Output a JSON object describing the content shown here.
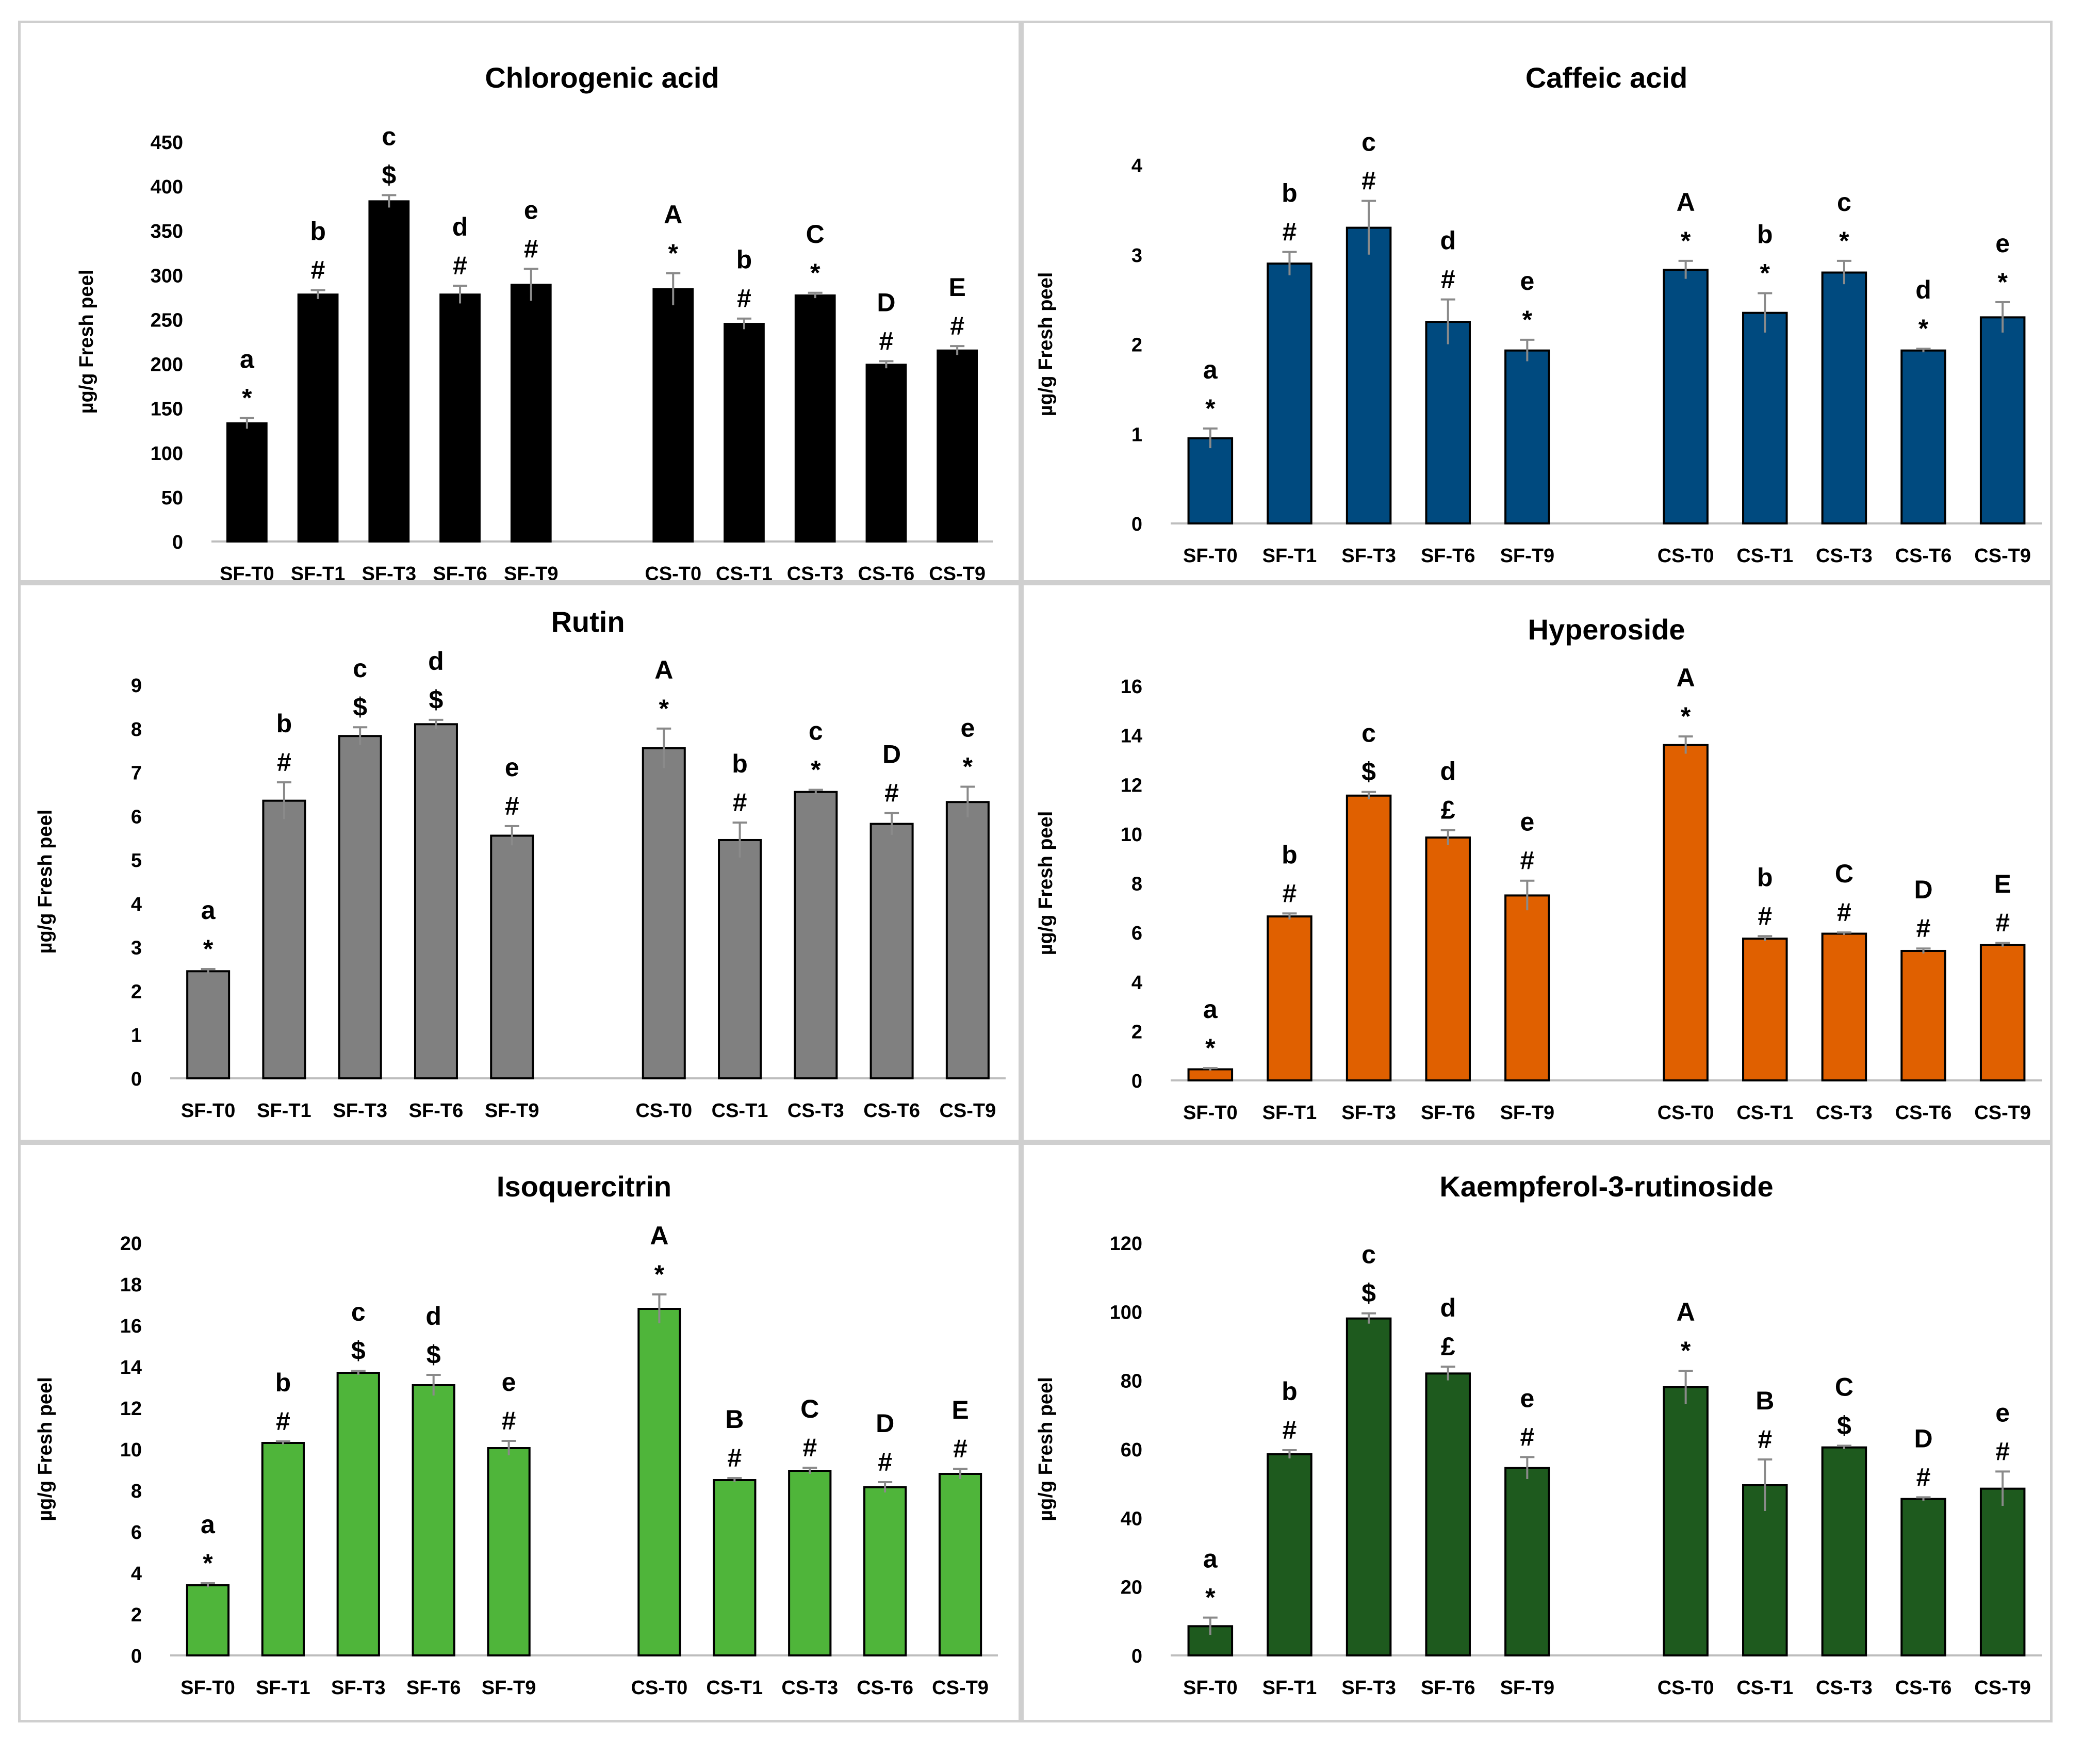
{
  "chart_data": [
    {
      "type": "bar",
      "title": "Chlorogenic acid",
      "ylabel": "µg/g Fresh peel",
      "xlabel": "",
      "color": "#000000",
      "ylim": [
        0,
        450
      ],
      "yticks": [
        "0",
        "50",
        "100",
        "150",
        "200",
        "250",
        "300",
        "350",
        "400",
        "450"
      ],
      "categories": [
        "SF-T0",
        "SF-T1",
        "SF-T3",
        "SF-T6",
        "SF-T9",
        "CS-T0",
        "CS-T1",
        "CS-T3",
        "CS-T6",
        "CS-T9"
      ],
      "values": [
        133,
        278,
        383,
        278,
        289,
        284,
        245,
        277,
        199,
        215
      ],
      "errors": [
        6,
        5,
        7,
        10,
        18,
        18,
        6,
        3,
        4,
        5
      ],
      "letters": [
        "a",
        "b",
        "c",
        "d",
        "e",
        "A",
        "b",
        "C",
        "D",
        "E"
      ],
      "symbols": [
        "*",
        "#",
        "$",
        "#",
        "#",
        "*",
        "#",
        "*",
        "#",
        "#"
      ]
    },
    {
      "type": "bar",
      "title": "Caffeic acid",
      "ylabel": "µg/g Fresh peel",
      "xlabel": "",
      "color": "#004a7f",
      "ylim": [
        0,
        4
      ],
      "yticks": [
        "0",
        "1",
        "2",
        "3",
        "4"
      ],
      "categories": [
        "SF-T0",
        "SF-T1",
        "SF-T3",
        "SF-T6",
        "SF-T9",
        "CS-T0",
        "CS-T1",
        "CS-T3",
        "CS-T6",
        "CS-T9"
      ],
      "values": [
        0.95,
        2.9,
        3.3,
        2.25,
        1.93,
        2.83,
        2.35,
        2.8,
        1.93,
        2.3
      ],
      "errors": [
        0.11,
        0.13,
        0.3,
        0.25,
        0.12,
        0.1,
        0.22,
        0.13,
        0.02,
        0.17
      ],
      "letters": [
        "a",
        "b",
        "c",
        "d",
        "e",
        "A",
        "b",
        "c",
        "d",
        "e"
      ],
      "symbols": [
        "*",
        "#",
        "#",
        "#",
        "*",
        "*",
        "*",
        "*",
        "*",
        "*"
      ]
    },
    {
      "type": "bar",
      "title": "Rutin",
      "ylabel": "µg/g Fresh peel",
      "xlabel": "",
      "color": "#808080",
      "ylim": [
        0,
        9
      ],
      "yticks": [
        "0",
        "1",
        "2",
        "3",
        "4",
        "5",
        "6",
        "7",
        "8",
        "9"
      ],
      "categories": [
        "SF-T0",
        "SF-T1",
        "SF-T3",
        "SF-T6",
        "SF-T9",
        "CS-T0",
        "CS-T1",
        "CS-T3",
        "CS-T6",
        "CS-T9"
      ],
      "values": [
        2.45,
        6.35,
        7.83,
        8.1,
        5.55,
        7.55,
        5.45,
        6.55,
        5.82,
        6.32
      ],
      "errors": [
        0.05,
        0.42,
        0.2,
        0.1,
        0.22,
        0.45,
        0.4,
        0.05,
        0.25,
        0.35
      ],
      "letters": [
        "a",
        "b",
        "c",
        "d",
        "e",
        "A",
        "b",
        "c",
        "D",
        "e"
      ],
      "symbols": [
        "*",
        "#",
        "$",
        "$",
        "#",
        "*",
        "#",
        "*",
        "#",
        "*"
      ]
    },
    {
      "type": "bar",
      "title": "Hyperoside",
      "ylabel": "µg/g Fresh peel",
      "xlabel": "",
      "color": "#e06000",
      "ylim": [
        0,
        16
      ],
      "yticks": [
        "0",
        "2",
        "4",
        "6",
        "8",
        "10",
        "12",
        "14",
        "16"
      ],
      "categories": [
        "SF-T0",
        "SF-T1",
        "SF-T3",
        "SF-T6",
        "SF-T9",
        "CS-T0",
        "CS-T1",
        "CS-T3",
        "CS-T6",
        "CS-T9"
      ],
      "values": [
        0.45,
        6.65,
        11.55,
        9.85,
        7.5,
        13.6,
        5.75,
        5.95,
        5.25,
        5.5
      ],
      "errors": [
        0.05,
        0.12,
        0.15,
        0.3,
        0.6,
        0.35,
        0.1,
        0.05,
        0.1,
        0.08
      ],
      "letters": [
        "a",
        "b",
        "c",
        "d",
        "e",
        "A",
        "b",
        "C",
        "D",
        "E"
      ],
      "symbols": [
        "*",
        "#",
        "$",
        "£",
        "#",
        "*",
        "#",
        "#",
        "#",
        "#"
      ]
    },
    {
      "type": "bar",
      "title": "Isoquercitrin",
      "ylabel": "µg/g Fresh peel",
      "xlabel": "",
      "color": "#4fb53a",
      "ylim": [
        0,
        20
      ],
      "yticks": [
        "0",
        "2",
        "4",
        "6",
        "8",
        "10",
        "12",
        "14",
        "16",
        "18",
        "20"
      ],
      "categories": [
        "SF-T0",
        "SF-T1",
        "SF-T3",
        "SF-T6",
        "SF-T9",
        "CS-T0",
        "CS-T1",
        "CS-T3",
        "CS-T6",
        "CS-T9"
      ],
      "values": [
        3.4,
        10.3,
        13.7,
        13.1,
        10.05,
        16.8,
        8.5,
        8.95,
        8.15,
        8.8
      ],
      "errors": [
        0.1,
        0.08,
        0.1,
        0.5,
        0.35,
        0.7,
        0.1,
        0.15,
        0.25,
        0.25
      ],
      "letters": [
        "a",
        "b",
        "c",
        "d",
        "e",
        "A",
        "B",
        "C",
        "D",
        "E"
      ],
      "symbols": [
        "*",
        "#",
        "$",
        "$",
        "#",
        "*",
        "#",
        "#",
        "#",
        "#"
      ]
    },
    {
      "type": "bar",
      "title": "Kaempferol-3-rutinoside",
      "ylabel": "µg/g Fresh peel",
      "xlabel": "",
      "color": "#1e5a1e",
      "ylim": [
        0,
        120
      ],
      "yticks": [
        "0",
        "20",
        "40",
        "60",
        "80",
        "100",
        "120"
      ],
      "categories": [
        "SF-T0",
        "SF-T1",
        "SF-T3",
        "SF-T6",
        "SF-T9",
        "CS-T0",
        "CS-T1",
        "CS-T3",
        "CS-T6",
        "CS-T9"
      ],
      "values": [
        8.5,
        58.5,
        98,
        82,
        54.5,
        78,
        49.5,
        60.5,
        45.5,
        48.5
      ],
      "errors": [
        2.5,
        1.2,
        1.5,
        2.0,
        3.2,
        4.8,
        7.5,
        0.5,
        0.5,
        5.0
      ],
      "letters": [
        "a",
        "b",
        "c",
        "d",
        "e",
        "A",
        "B",
        "C",
        "D",
        "e"
      ],
      "symbols": [
        "*",
        "#",
        "$",
        "£",
        "#",
        "*",
        "#",
        "$",
        "#",
        "#"
      ]
    }
  ]
}
